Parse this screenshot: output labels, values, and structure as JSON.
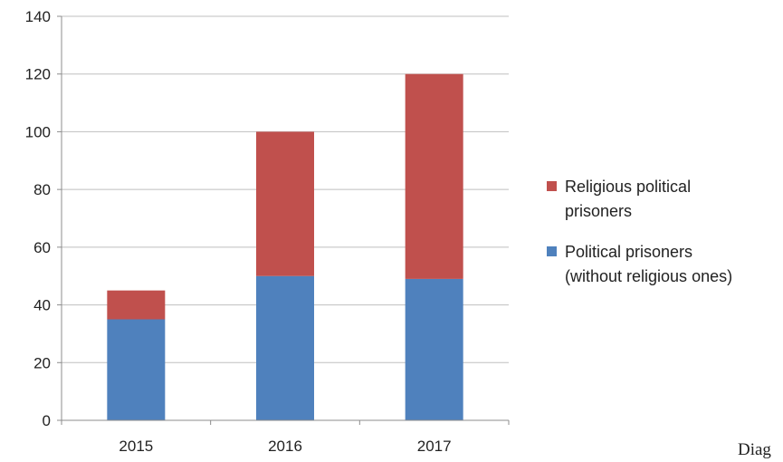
{
  "chart_data": {
    "type": "bar",
    "stacked": true,
    "categories": [
      "2015",
      "2016",
      "2017"
    ],
    "series": [
      {
        "name": "Political prisoners (without religious ones)",
        "legend_lines": [
          "Political prisoners",
          "(without religious ones)"
        ],
        "color": "#4f81bd",
        "values": [
          35,
          50,
          49
        ]
      },
      {
        "name": "Religious political prisoners",
        "legend_lines": [
          "Religious political",
          "prisoners"
        ],
        "color": "#c0504d",
        "values": [
          10,
          50,
          71
        ]
      }
    ],
    "ylim": [
      0,
      140
    ],
    "yticks": [
      0,
      20,
      40,
      60,
      80,
      100,
      120,
      140
    ],
    "grid": true,
    "legend": "right",
    "title": "",
    "xlabel": "",
    "ylabel": ""
  },
  "overflow_text": "Diag"
}
